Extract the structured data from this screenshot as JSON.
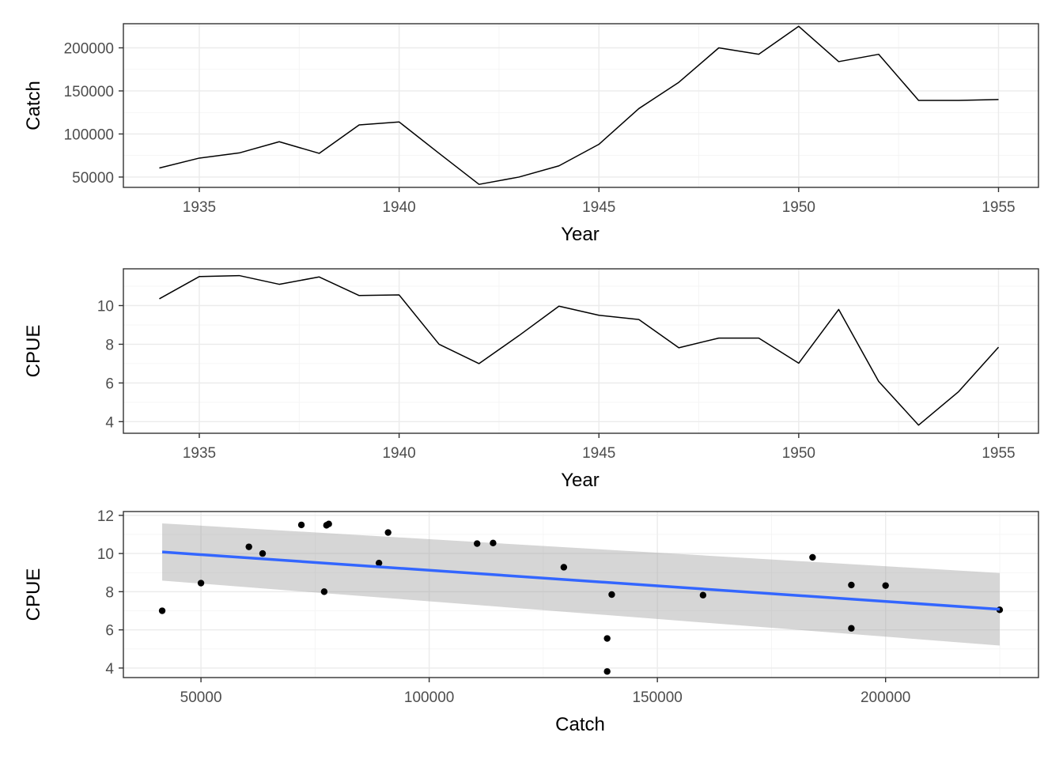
{
  "chart_data": [
    {
      "type": "line",
      "xlabel": "Year",
      "ylabel": "Catch",
      "xlim": [
        1933.1,
        1956.0
      ],
      "ylim": [
        38000,
        228000
      ],
      "xticks": [
        1935,
        1940,
        1945,
        1950,
        1955
      ],
      "yticks": [
        50000,
        100000,
        150000,
        200000
      ],
      "x": [
        1934,
        1935,
        1936,
        1937,
        1938,
        1939,
        1940,
        1941,
        1942,
        1943,
        1944,
        1945,
        1946,
        1947,
        1948,
        1949,
        1950,
        1951,
        1952,
        1953,
        1954,
        1955
      ],
      "values": [
        60500,
        72000,
        78000,
        91000,
        77500,
        110500,
        114000,
        77500,
        41500,
        50000,
        63000,
        88000,
        129500,
        160000,
        200000,
        192500,
        225000,
        184000,
        192500,
        139000,
        139000,
        140000
      ],
      "grid": true
    },
    {
      "type": "line",
      "xlabel": "Year",
      "ylabel": "CPUE",
      "xlim": [
        1933.1,
        1956.0
      ],
      "ylim": [
        3.4,
        11.9
      ],
      "xticks": [
        1935,
        1940,
        1945,
        1950,
        1955
      ],
      "yticks": [
        4,
        6,
        8,
        10
      ],
      "x": [
        1934,
        1935,
        1936,
        1937,
        1938,
        1939,
        1940,
        1941,
        1942,
        1943,
        1944,
        1945,
        1946,
        1947,
        1948,
        1949,
        1950,
        1951,
        1952,
        1953,
        1954,
        1955
      ],
      "values": [
        10.35,
        11.5,
        11.55,
        11.1,
        11.48,
        10.52,
        10.55,
        8.0,
        7.0,
        8.45,
        9.97,
        9.5,
        9.28,
        7.82,
        8.32,
        8.32,
        7.02,
        9.8,
        6.08,
        3.82,
        5.55,
        7.85
      ],
      "grid": true
    },
    {
      "type": "scatter",
      "xlabel": "Catch",
      "ylabel": "CPUE",
      "xlim": [
        33000,
        233500
      ],
      "ylim": [
        3.5,
        12.2
      ],
      "xticks": [
        50000,
        100000,
        150000,
        200000
      ],
      "yticks": [
        4,
        6,
        8,
        10,
        12
      ],
      "points": [
        [
          60500,
          10.35
        ],
        [
          72000,
          11.5
        ],
        [
          78000,
          11.55
        ],
        [
          91000,
          11.1
        ],
        [
          77500,
          11.48
        ],
        [
          110500,
          10.52
        ],
        [
          114000,
          10.55
        ],
        [
          77000,
          8.0
        ],
        [
          41500,
          7.0
        ],
        [
          50000,
          8.45
        ],
        [
          63500,
          10.0
        ],
        [
          89000,
          9.5
        ],
        [
          129500,
          9.28
        ],
        [
          140000,
          7.85
        ],
        [
          160000,
          7.82
        ],
        [
          200000,
          8.32
        ],
        [
          192500,
          8.35
        ],
        [
          225000,
          7.05
        ],
        [
          184000,
          9.8
        ],
        [
          192500,
          6.08
        ],
        [
          139000,
          3.82
        ],
        [
          139000,
          5.55
        ]
      ],
      "trend": {
        "method": "linear",
        "x_range": [
          41500,
          225000
        ],
        "y_range": [
          10.08,
          7.08
        ],
        "ci_lower": [
          8.58,
          5.18
        ],
        "ci_upper": [
          11.58,
          8.98
        ],
        "color": "#3366ff"
      },
      "grid": true
    }
  ]
}
